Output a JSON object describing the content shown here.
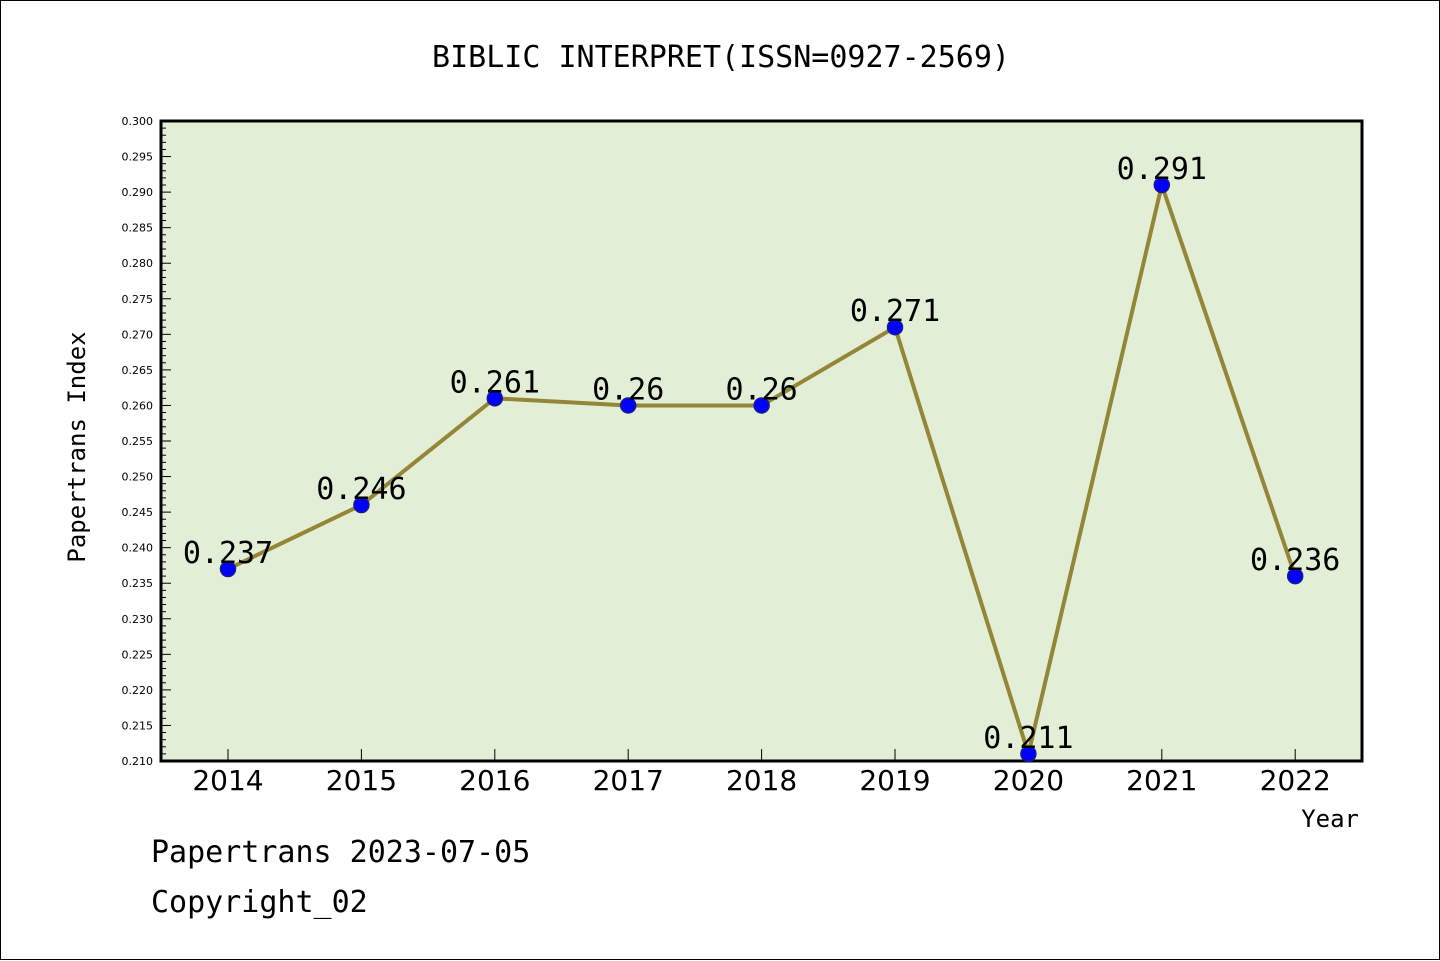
{
  "chart_data": {
    "type": "line",
    "title": "BIBLIC INTERPRET(ISSN=0927-2569)",
    "xlabel": "Year",
    "ylabel": "Papertrans Index",
    "categories": [
      "2014",
      "2015",
      "2016",
      "2017",
      "2018",
      "2019",
      "2020",
      "2021",
      "2022"
    ],
    "values": [
      0.237,
      0.246,
      0.261,
      0.26,
      0.26,
      0.271,
      0.211,
      0.291,
      0.236
    ],
    "data_labels": [
      "0.237",
      "0.246",
      "0.261",
      "0.26",
      "0.26",
      "0.271",
      "0.211",
      "0.291",
      "0.236"
    ],
    "ylim": [
      0.21,
      0.3
    ],
    "yticks": [
      "0.210",
      "0.215",
      "0.220",
      "0.225",
      "0.230",
      "0.235",
      "0.240",
      "0.245",
      "0.250",
      "0.255",
      "0.260",
      "0.265",
      "0.270",
      "0.275",
      "0.280",
      "0.285",
      "0.290",
      "0.295",
      "0.300"
    ],
    "grid": false,
    "colors": {
      "plot_background": "#e2efd6",
      "line": "#948537",
      "marker": "#0000ff",
      "marker_edge": "#1a1a8a"
    }
  },
  "footer": {
    "line1": "Papertrans 2023-07-05",
    "line2": "Copyright_02"
  }
}
